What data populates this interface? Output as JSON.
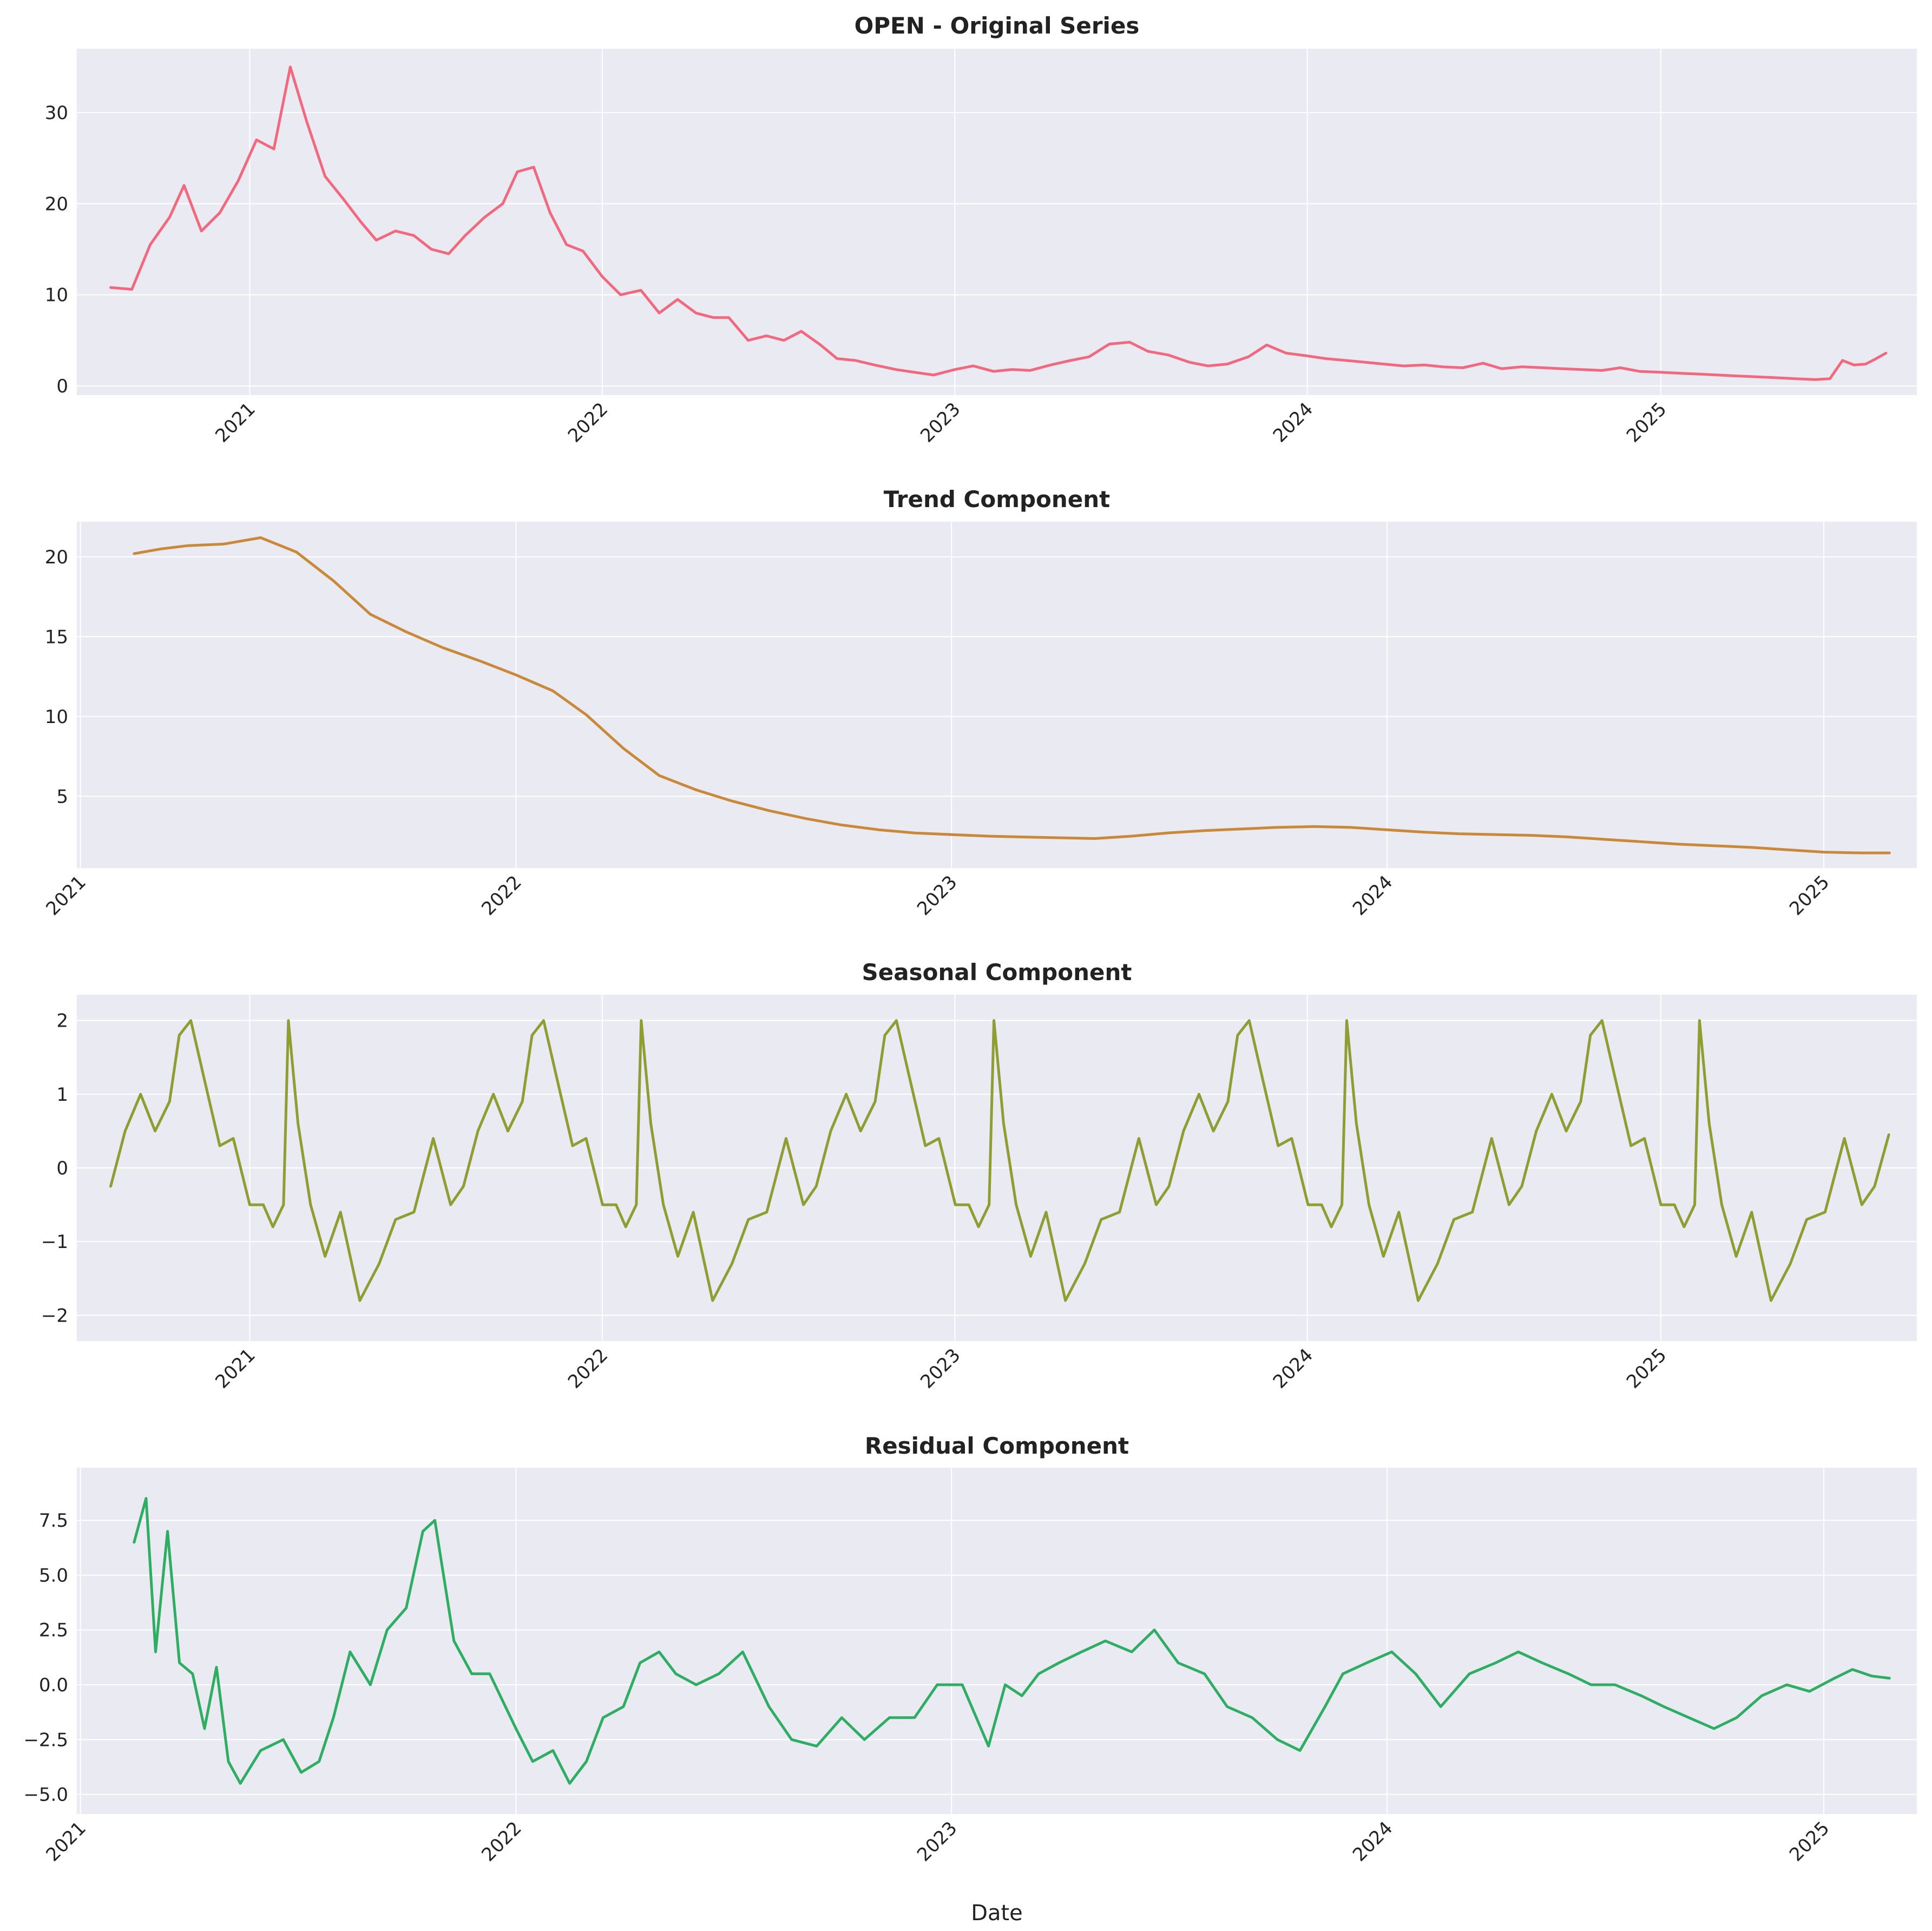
{
  "chart_data": [
    {
      "type": "line",
      "title": "OPEN - Original Series",
      "xlabel": "",
      "ylabel": "",
      "xlim": [
        "2020-07-06",
        "2025-09-23"
      ],
      "ylim": [
        -1,
        37
      ],
      "yticks": [
        0,
        10,
        20,
        30
      ],
      "xticks": [
        "2021",
        "2022",
        "2023",
        "2024",
        "2025"
      ],
      "grid": true,
      "color": "#f0697f",
      "x": [
        "2020-08-10",
        "2020-09-01",
        "2020-09-20",
        "2020-10-10",
        "2020-10-25",
        "2020-11-12",
        "2020-12-01",
        "2020-12-20",
        "2021-01-08",
        "2021-01-26",
        "2021-02-12",
        "2021-03-01",
        "2021-03-20",
        "2021-04-08",
        "2021-04-26",
        "2021-05-12",
        "2021-06-01",
        "2021-06-20",
        "2021-07-08",
        "2021-07-26",
        "2021-08-12",
        "2021-09-01",
        "2021-09-20",
        "2021-10-05",
        "2021-10-22",
        "2021-11-08",
        "2021-11-25",
        "2021-12-12",
        "2022-01-01",
        "2022-01-20",
        "2022-02-10",
        "2022-03-01",
        "2022-03-20",
        "2022-04-08",
        "2022-04-26",
        "2022-05-12",
        "2022-06-01",
        "2022-06-20",
        "2022-07-08",
        "2022-07-26",
        "2022-08-15",
        "2022-09-01",
        "2022-09-20",
        "2022-10-10",
        "2022-11-01",
        "2022-11-20",
        "2022-12-10",
        "2023-01-01",
        "2023-01-20",
        "2023-02-10",
        "2023-03-01",
        "2023-03-20",
        "2023-04-10",
        "2023-05-01",
        "2023-05-20",
        "2023-06-10",
        "2023-07-01",
        "2023-07-20",
        "2023-08-10",
        "2023-09-01",
        "2023-09-20",
        "2023-10-10",
        "2023-11-01",
        "2023-11-20",
        "2023-12-10",
        "2024-01-01",
        "2024-01-20",
        "2024-02-10",
        "2024-03-01",
        "2024-03-20",
        "2024-04-10",
        "2024-05-01",
        "2024-05-20",
        "2024-06-10",
        "2024-07-01",
        "2024-07-20",
        "2024-08-10",
        "2024-09-01",
        "2024-09-20",
        "2024-10-10",
        "2024-11-01",
        "2024-11-20",
        "2024-12-10",
        "2025-01-01",
        "2025-01-20",
        "2025-02-10",
        "2025-03-01",
        "2025-03-20",
        "2025-04-10",
        "2025-05-01",
        "2025-05-20",
        "2025-06-10",
        "2025-06-25",
        "2025-07-08",
        "2025-07-20",
        "2025-08-01",
        "2025-08-12",
        "2025-08-22"
      ],
      "values": [
        10.8,
        10.6,
        15.5,
        18.5,
        22.0,
        17.0,
        19.0,
        22.5,
        27.0,
        26.0,
        35.0,
        29.0,
        23.0,
        20.5,
        18.0,
        16.0,
        17.0,
        16.5,
        15.0,
        14.5,
        16.5,
        18.5,
        20.0,
        23.5,
        24.0,
        19.0,
        15.5,
        14.8,
        12.0,
        10.0,
        10.5,
        8.0,
        9.5,
        8.0,
        7.5,
        7.5,
        5.0,
        5.5,
        5.0,
        6.0,
        4.5,
        3.0,
        2.8,
        2.3,
        1.8,
        1.5,
        1.2,
        1.8,
        2.2,
        1.6,
        1.8,
        1.7,
        2.3,
        2.8,
        3.2,
        4.6,
        4.8,
        3.8,
        3.4,
        2.6,
        2.2,
        2.4,
        3.2,
        4.5,
        3.6,
        3.3,
        3.0,
        2.8,
        2.6,
        2.4,
        2.2,
        2.3,
        2.1,
        2.0,
        2.5,
        1.9,
        2.1,
        2.0,
        1.9,
        1.8,
        1.7,
        2.0,
        1.6,
        1.5,
        1.4,
        1.3,
        1.2,
        1.1,
        1.0,
        0.9,
        0.8,
        0.7,
        0.8,
        2.8,
        2.3,
        2.4,
        3.0,
        3.6
      ]
    },
    {
      "type": "line",
      "title": "Trend Component",
      "xlabel": "",
      "ylabel": "",
      "xlim": [
        "2020-12-29",
        "2025-03-20"
      ],
      "ylim": [
        0.5,
        22.2
      ],
      "yticks": [
        5,
        10,
        15,
        20
      ],
      "xticks": [
        "2021",
        "2022",
        "2023",
        "2024",
        "2025"
      ],
      "grid": true,
      "color": "#c9883a",
      "x": [
        "2021-02-15",
        "2021-03-10",
        "2021-04-01",
        "2021-05-01",
        "2021-06-01",
        "2021-07-01",
        "2021-08-01",
        "2021-09-01",
        "2021-10-01",
        "2021-11-01",
        "2021-12-01",
        "2022-01-01",
        "2022-02-01",
        "2022-03-01",
        "2022-04-01",
        "2022-05-01",
        "2022-06-01",
        "2022-07-01",
        "2022-08-01",
        "2022-09-01",
        "2022-10-01",
        "2022-11-01",
        "2022-12-01",
        "2023-01-01",
        "2023-02-01",
        "2023-03-01",
        "2023-04-01",
        "2023-05-01",
        "2023-06-01",
        "2023-07-01",
        "2023-08-01",
        "2023-09-01",
        "2023-10-01",
        "2023-11-01",
        "2023-12-01",
        "2024-01-01",
        "2024-02-01",
        "2024-03-01",
        "2024-04-01",
        "2024-05-01",
        "2024-06-01",
        "2024-07-01",
        "2024-08-01",
        "2024-09-01",
        "2024-10-01",
        "2024-11-01",
        "2024-12-01",
        "2025-01-01",
        "2025-02-01",
        "2025-02-25"
      ],
      "values": [
        20.2,
        20.5,
        20.7,
        20.8,
        21.2,
        20.3,
        18.5,
        16.4,
        15.3,
        14.3,
        13.5,
        12.6,
        11.6,
        10.1,
        8.0,
        6.3,
        5.4,
        4.7,
        4.1,
        3.6,
        3.2,
        2.9,
        2.7,
        2.6,
        2.5,
        2.45,
        2.4,
        2.35,
        2.5,
        2.7,
        2.85,
        2.95,
        3.05,
        3.1,
        3.05,
        2.9,
        2.75,
        2.65,
        2.6,
        2.55,
        2.45,
        2.3,
        2.15,
        2.0,
        1.9,
        1.8,
        1.65,
        1.5,
        1.45,
        1.45
      ]
    },
    {
      "type": "line",
      "title": "Seasonal Component",
      "xlabel": "",
      "ylabel": "",
      "xlim": [
        "2020-07-06",
        "2025-09-23"
      ],
      "ylim": [
        -2.35,
        2.35
      ],
      "yticks": [
        -2,
        -1,
        0,
        1,
        2
      ],
      "xticks": [
        "2021",
        "2022",
        "2023",
        "2024",
        "2025"
      ],
      "grid": true,
      "color": "#8f9d32",
      "x": [
        "2020-08-10",
        "2020-08-25",
        "2020-09-10",
        "2020-09-25",
        "2020-10-10",
        "2020-10-20",
        "2020-11-01",
        "2020-11-15",
        "2020-12-01",
        "2020-12-15",
        "2021-01-01",
        "2021-01-15",
        "2021-01-25",
        "2021-02-05",
        "2021-02-10",
        "2021-02-20",
        "2021-03-05",
        "2021-03-20",
        "2021-04-05",
        "2021-04-25",
        "2021-05-15",
        "2021-06-01",
        "2021-06-20",
        "2021-07-10",
        "2021-07-28"
      ],
      "values": [
        -0.25,
        0.5,
        1.0,
        0.5,
        0.9,
        1.8,
        2.0,
        1.2,
        0.3,
        0.4,
        -0.5,
        -0.5,
        -0.8,
        -0.5,
        2.0,
        0.6,
        -0.5,
        -1.2,
        -0.6,
        -1.8,
        -1.3,
        -0.7,
        -0.6,
        0.4,
        -0.5
      ],
      "pattern": "repeats every year through 2025-08"
    },
    {
      "type": "line",
      "title": "Residual Component",
      "xlabel": "Date",
      "ylabel": "",
      "xlim": [
        "2020-12-29",
        "2025-03-20"
      ],
      "ylim": [
        -5.9,
        9.9
      ],
      "yticks": [
        -5.0,
        -2.5,
        0.0,
        2.5,
        5.0,
        7.5
      ],
      "xticks": [
        "2021",
        "2022",
        "2023",
        "2024",
        "2025"
      ],
      "grid": true,
      "color": "#2ead63",
      "x": [
        "2021-02-15",
        "2021-02-25",
        "2021-03-05",
        "2021-03-15",
        "2021-03-25",
        "2021-04-05",
        "2021-04-15",
        "2021-04-25",
        "2021-05-05",
        "2021-05-15",
        "2021-06-01",
        "2021-06-20",
        "2021-07-05",
        "2021-07-20",
        "2021-08-01",
        "2021-08-15",
        "2021-09-01",
        "2021-09-15",
        "2021-10-01",
        "2021-10-15",
        "2021-10-25",
        "2021-11-10",
        "2021-11-25",
        "2021-12-10",
        "2022-01-01",
        "2022-01-15",
        "2022-02-01",
        "2022-02-15",
        "2022-03-01",
        "2022-03-15",
        "2022-04-01",
        "2022-04-15",
        "2022-05-01",
        "2022-05-15",
        "2022-06-01",
        "2022-06-20",
        "2022-07-10",
        "2022-08-01",
        "2022-08-20",
        "2022-09-10",
        "2022-10-01",
        "2022-10-20",
        "2022-11-10",
        "2022-12-01",
        "2022-12-20",
        "2023-01-10",
        "2023-02-01",
        "2023-02-15",
        "2023-03-01",
        "2023-03-15",
        "2023-04-01",
        "2023-04-20",
        "2023-05-10",
        "2023-06-01",
        "2023-06-20",
        "2023-07-10",
        "2023-08-01",
        "2023-08-20",
        "2023-09-10",
        "2023-10-01",
        "2023-10-20",
        "2023-11-10",
        "2023-11-25",
        "2023-12-15",
        "2024-01-05",
        "2024-01-25",
        "2024-02-15",
        "2024-03-10",
        "2024-04-01",
        "2024-04-20",
        "2024-05-10",
        "2024-06-01",
        "2024-06-20",
        "2024-07-10",
        "2024-08-01",
        "2024-08-20",
        "2024-09-10",
        "2024-10-01",
        "2024-10-20",
        "2024-11-10",
        "2024-12-01",
        "2024-12-20",
        "2025-01-10",
        "2025-01-25",
        "2025-02-10",
        "2025-02-25"
      ],
      "values": [
        6.5,
        8.5,
        1.5,
        7.0,
        1.0,
        0.5,
        -2.0,
        0.8,
        -3.5,
        -4.5,
        -3.0,
        -2.5,
        -4.0,
        -3.5,
        -1.5,
        1.5,
        0.0,
        2.5,
        3.5,
        7.0,
        7.5,
        2.0,
        0.5,
        0.5,
        -2.0,
        -3.5,
        -3.0,
        -4.5,
        -3.5,
        -1.5,
        -1.0,
        1.0,
        1.5,
        0.5,
        0.0,
        0.5,
        1.5,
        -1.0,
        -2.5,
        -2.8,
        -1.5,
        -2.5,
        -1.5,
        -1.5,
        0.0,
        0.0,
        -2.8,
        0.0,
        -0.5,
        0.5,
        1.0,
        1.5,
        2.0,
        1.5,
        2.5,
        1.0,
        0.5,
        -1.0,
        -1.5,
        -2.5,
        -3.0,
        -1.0,
        0.5,
        1.0,
        1.5,
        0.5,
        -1.0,
        0.5,
        1.0,
        1.5,
        1.0,
        0.5,
        0.0,
        0.0,
        -0.5,
        -1.0,
        -1.5,
        -2.0,
        -1.5,
        -0.5,
        0.0,
        -0.3,
        0.3,
        0.7,
        0.4,
        0.3
      ]
    }
  ]
}
